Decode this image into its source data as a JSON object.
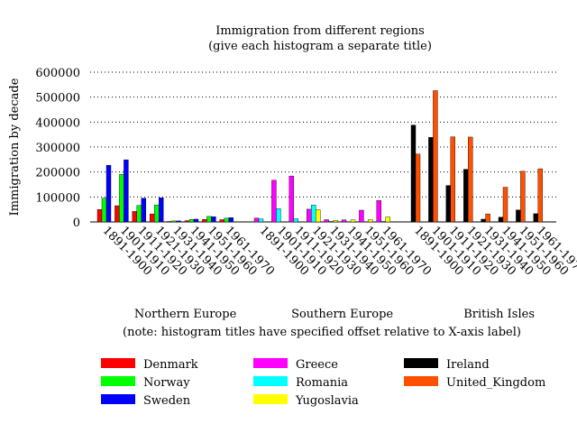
{
  "chart_data": {
    "type": "bar",
    "title": "Immigration from different regions",
    "subtitle": "(give each histogram a separate title)",
    "ylabel": "Immigration by decade",
    "xlabel": "",
    "ylim": [
      0,
      600000
    ],
    "yticks": [
      0,
      100000,
      200000,
      300000,
      400000,
      500000,
      600000
    ],
    "grid": true,
    "footnote": "(note: histogram titles have specified offset relative to X-axis label)",
    "categories": [
      "1891-1900",
      "1901-1910",
      "1911-1920",
      "1921-1930",
      "1931-1940",
      "1941-1950",
      "1951-1960",
      "1961-1970"
    ],
    "groups": [
      {
        "title": "Northern Europe",
        "series": [
          {
            "name": "Denmark",
            "color": "#ff0000",
            "values": [
              50000,
              65000,
              42000,
              32000,
              2000,
              5000,
              10000,
              9000
            ]
          },
          {
            "name": "Norway",
            "color": "#00ff00",
            "values": [
              95000,
              190000,
              66000,
              68000,
              4000,
              10000,
              22000,
              15000
            ]
          },
          {
            "name": "Sweden",
            "color": "#0000ff",
            "values": [
              227000,
              249000,
              95000,
              97000,
              4000,
              11000,
              21000,
              17000
            ]
          }
        ]
      },
      {
        "title": "Southern Europe",
        "series": [
          {
            "name": "Greece",
            "color": "#ff00ff",
            "values": [
              15000,
              167000,
              184000,
              51000,
              9000,
              8000,
              47000,
              86000
            ]
          },
          {
            "name": "Romania",
            "color": "#00ffff",
            "values": [
              12000,
              53000,
              13000,
              68000,
              3000,
              1000,
              1000,
              3000
            ]
          },
          {
            "name": "Yugoslavia",
            "color": "#ffff00",
            "values": [
              0,
              0,
              1000,
              49000,
              6000,
              8000,
              9000,
              20000
            ]
          }
        ]
      },
      {
        "title": "British Isles",
        "series": [
          {
            "name": "Ireland",
            "color": "#000000",
            "values": [
              388000,
              339000,
              146000,
              211000,
              11000,
              19000,
              48000,
              33000
            ]
          },
          {
            "name": "United_Kingdom",
            "color": "#ff5000",
            "values": [
              272000,
              526000,
              341000,
              340000,
              32000,
              139000,
              203000,
              213000
            ]
          }
        ]
      }
    ],
    "legend": [
      {
        "name": "Denmark",
        "color": "#ff0000"
      },
      {
        "name": "Norway",
        "color": "#00ff00"
      },
      {
        "name": "Sweden",
        "color": "#0000ff"
      },
      {
        "name": "Greece",
        "color": "#ff00ff"
      },
      {
        "name": "Romania",
        "color": "#00ffff"
      },
      {
        "name": "Yugoslavia",
        "color": "#ffff00"
      },
      {
        "name": "Ireland",
        "color": "#000000"
      },
      {
        "name": "United_Kingdom",
        "color": "#ff5000"
      }
    ]
  }
}
